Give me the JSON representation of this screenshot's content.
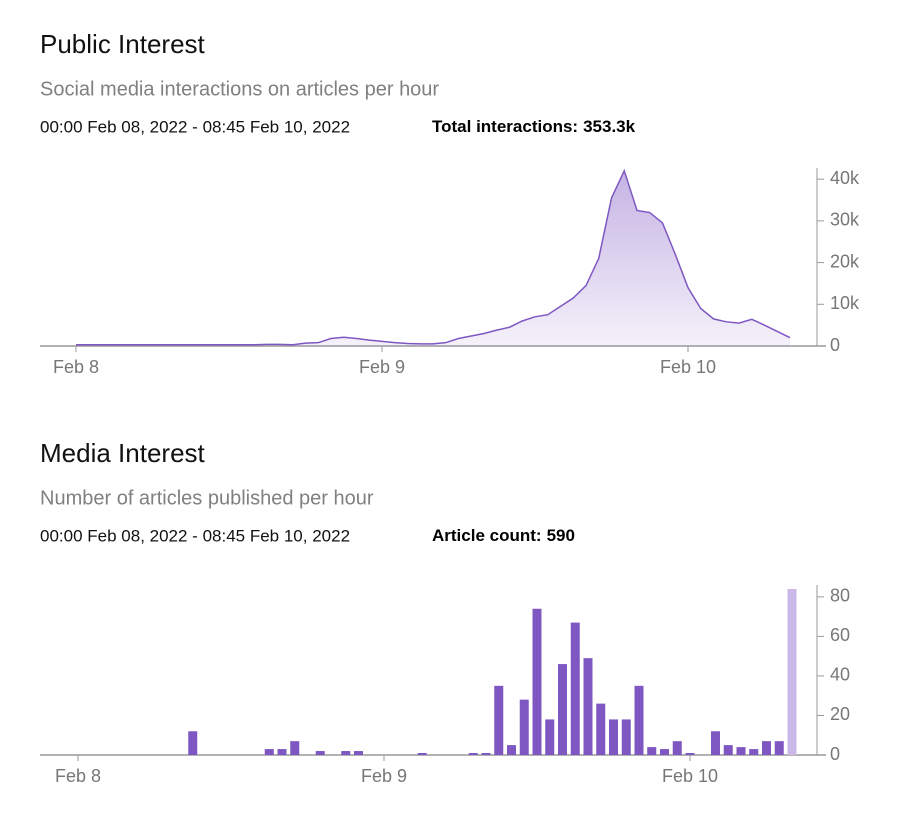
{
  "chart_data": [
    {
      "type": "area",
      "title": "Public Interest",
      "subtitle": "Social media interactions on articles per hour",
      "range": "00:00 Feb 08, 2022 - 08:45 Feb 10, 2022",
      "total_label": "Total interactions:",
      "total": "353.3k",
      "categories": [
        "Feb 8",
        null,
        null,
        null,
        null,
        null,
        null,
        null,
        null,
        null,
        null,
        null,
        null,
        null,
        null,
        null,
        null,
        null,
        null,
        null,
        null,
        null,
        null,
        null,
        "Feb 9",
        null,
        null,
        null,
        null,
        null,
        null,
        null,
        null,
        null,
        null,
        null,
        null,
        null,
        null,
        null,
        null,
        null,
        null,
        null,
        null,
        null,
        null,
        null,
        "Feb 10",
        null,
        null,
        null,
        null,
        null,
        null,
        null,
        null
      ],
      "values": [
        300,
        300,
        300,
        300,
        300,
        300,
        300,
        300,
        300,
        300,
        300,
        300,
        300,
        300,
        300,
        400,
        400,
        300,
        700,
        800,
        1800,
        2100,
        1800,
        1400,
        1100,
        800,
        600,
        500,
        500,
        800,
        1800,
        2400,
        3000,
        3800,
        4500,
        6000,
        7000,
        7500,
        9500,
        11500,
        14500,
        21000,
        35500,
        42000,
        32500,
        32000,
        29500,
        22000,
        14000,
        9000,
        6500,
        5800,
        5500,
        6400,
        5000,
        3500,
        2000
      ],
      "color": "#7e57c2",
      "ylim": [
        0,
        42200
      ],
      "yticks": [
        0,
        {
          "value": 10000,
          "label": "10k"
        },
        {
          "value": 20000,
          "label": "20k"
        },
        {
          "value": 30000,
          "label": "30k"
        },
        {
          "value": 40000,
          "label": "40k"
        }
      ]
    },
    {
      "type": "bar",
      "title": "Media Interest",
      "subtitle": "Number of articles published per hour",
      "range": "00:00 Feb 08, 2022 - 08:45 Feb 10, 2022",
      "total_label": "Article count:",
      "total": "590",
      "categories": [
        "Feb 8",
        null,
        null,
        null,
        null,
        null,
        null,
        null,
        null,
        null,
        null,
        null,
        null,
        null,
        null,
        null,
        null,
        null,
        null,
        null,
        null,
        null,
        null,
        null,
        "Feb 9",
        null,
        null,
        null,
        null,
        null,
        null,
        null,
        null,
        null,
        null,
        null,
        null,
        null,
        null,
        null,
        null,
        null,
        null,
        null,
        null,
        null,
        null,
        null,
        "Feb 10",
        null,
        null,
        null,
        null,
        null,
        null,
        null,
        null
      ],
      "values": [
        0,
        0,
        0,
        0,
        0,
        0,
        0,
        0,
        0,
        12,
        0,
        0,
        0,
        0,
        0,
        3,
        3,
        7,
        0,
        2,
        0,
        2,
        2,
        0,
        0,
        0,
        0,
        1,
        0,
        0,
        0,
        1,
        1,
        35,
        5,
        28,
        74,
        18,
        46,
        67,
        49,
        26,
        18,
        18,
        35,
        4,
        3,
        7,
        1,
        0,
        12,
        5,
        4,
        3,
        7,
        7,
        84
      ],
      "colors": [
        "#7e57c2",
        "#7e57c2",
        "#7e57c2",
        "#7e57c2",
        "#7e57c2",
        "#7e57c2",
        "#7e57c2",
        "#7e57c2",
        "#7e57c2",
        "#7e57c2",
        "#7e57c2",
        "#7e57c2",
        "#7e57c2",
        "#7e57c2",
        "#7e57c2",
        "#7e57c2",
        "#7e57c2",
        "#7e57c2",
        "#7e57c2",
        "#7e57c2",
        "#7e57c2",
        "#7e57c2",
        "#7e57c2",
        "#7e57c2",
        "#7e57c2",
        "#7e57c2",
        "#7e57c2",
        "#7e57c2",
        "#7e57c2",
        "#7e57c2",
        "#7e57c2",
        "#7e57c2",
        "#7e57c2",
        "#7e57c2",
        "#7e57c2",
        "#7e57c2",
        "#7e57c2",
        "#7e57c2",
        "#7e57c2",
        "#7e57c2",
        "#7e57c2",
        "#7e57c2",
        "#7e57c2",
        "#7e57c2",
        "#7e57c2",
        "#7e57c2",
        "#7e57c2",
        "#7e57c2",
        "#7e57c2",
        "#7e57c2",
        "#7e57c2",
        "#7e57c2",
        "#7e57c2",
        "#7e57c2",
        "#7e57c2",
        "#7e57c2",
        "#c9b8e8"
      ],
      "ylim": [
        0,
        85
      ],
      "yticks": [
        0,
        20,
        40,
        60,
        80
      ]
    }
  ]
}
